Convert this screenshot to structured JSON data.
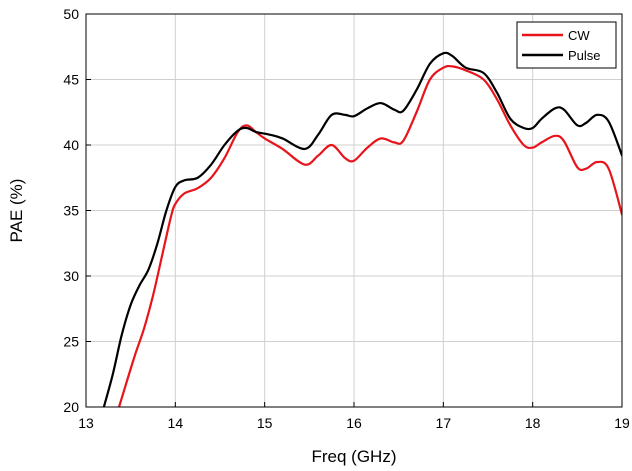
{
  "chart_data": {
    "type": "line",
    "xlabel": "Freq (GHz)",
    "ylabel": "PAE (%)",
    "xlim": [
      13,
      19
    ],
    "ylim": [
      20,
      50
    ],
    "xticks": [
      13,
      14,
      15,
      16,
      17,
      18,
      19
    ],
    "yticks": [
      20,
      25,
      30,
      35,
      40,
      45,
      50
    ],
    "grid": true,
    "legend_position": "top-right",
    "series": [
      {
        "name": "CW",
        "color": "#e8141b",
        "x": [
          13.37,
          13.45,
          13.55,
          13.65,
          13.75,
          13.85,
          13.95,
          14.0,
          14.1,
          14.25,
          14.4,
          14.55,
          14.7,
          14.8,
          14.9,
          15.0,
          15.2,
          15.45,
          15.6,
          15.75,
          15.9,
          16.0,
          16.15,
          16.3,
          16.45,
          16.55,
          16.7,
          16.85,
          17.0,
          17.1,
          17.25,
          17.45,
          17.6,
          17.75,
          17.9,
          18.0,
          18.1,
          18.25,
          18.35,
          18.5,
          18.6,
          18.72,
          18.85,
          19.0
        ],
        "y": [
          20.0,
          21.8,
          24.0,
          26.0,
          28.5,
          31.5,
          34.5,
          35.5,
          36.3,
          36.7,
          37.5,
          39.0,
          41.0,
          41.5,
          41.0,
          40.5,
          39.7,
          38.5,
          39.2,
          40.0,
          39.0,
          38.8,
          39.8,
          40.5,
          40.2,
          40.3,
          42.5,
          45.0,
          45.9,
          46.0,
          45.7,
          45.0,
          43.5,
          41.5,
          40.0,
          39.8,
          40.2,
          40.7,
          40.3,
          38.3,
          38.2,
          38.7,
          38.2,
          34.7
        ]
      },
      {
        "name": "Pulse",
        "color": "#000000",
        "x": [
          13.2,
          13.3,
          13.4,
          13.5,
          13.6,
          13.7,
          13.8,
          13.9,
          14.0,
          14.1,
          14.25,
          14.4,
          14.55,
          14.7,
          14.8,
          14.9,
          15.05,
          15.2,
          15.45,
          15.6,
          15.75,
          15.9,
          16.0,
          16.15,
          16.3,
          16.45,
          16.55,
          16.7,
          16.85,
          17.0,
          17.1,
          17.25,
          17.45,
          17.6,
          17.75,
          17.9,
          18.0,
          18.1,
          18.25,
          18.35,
          18.5,
          18.6,
          18.72,
          18.85,
          19.0
        ],
        "y": [
          20.0,
          22.5,
          25.5,
          27.8,
          29.3,
          30.5,
          32.5,
          35.0,
          36.8,
          37.3,
          37.5,
          38.5,
          40.0,
          41.1,
          41.3,
          41.0,
          40.8,
          40.5,
          39.7,
          40.8,
          42.3,
          42.3,
          42.2,
          42.8,
          43.2,
          42.7,
          42.6,
          44.2,
          46.2,
          47.0,
          46.8,
          45.9,
          45.5,
          44.0,
          42.0,
          41.3,
          41.3,
          42.0,
          42.8,
          42.7,
          41.5,
          41.7,
          42.3,
          41.8,
          39.2
        ]
      }
    ]
  }
}
